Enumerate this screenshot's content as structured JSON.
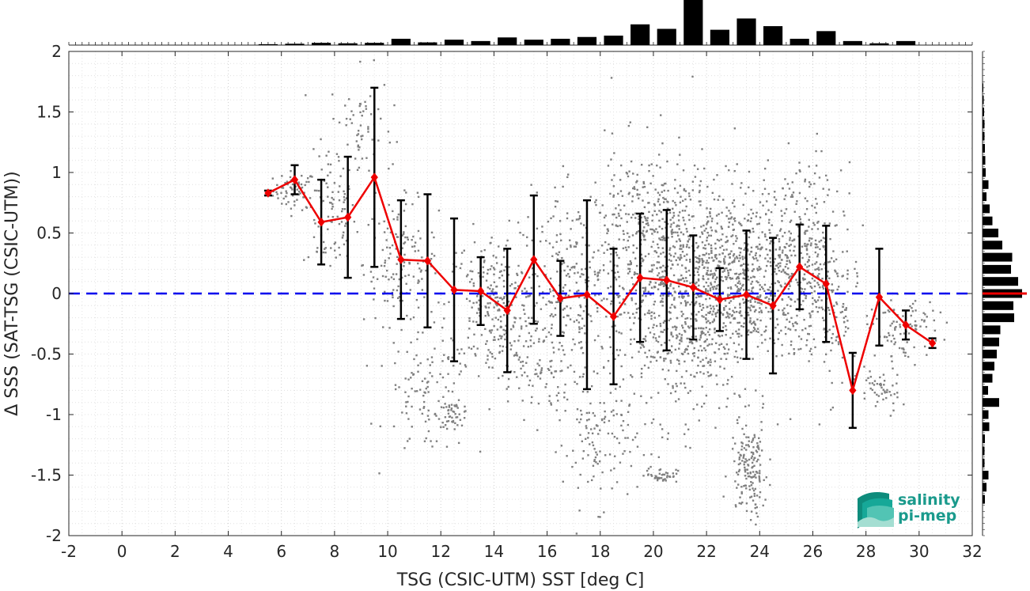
{
  "chart_data": {
    "type": "scatter",
    "xlabel": "TSG (CSIC-UTM) SST [deg C]",
    "ylabel": "Δ SSS (SAT-TSG (CSIC-UTM))",
    "xlim": [
      -2,
      32
    ],
    "ylim": [
      -2,
      2
    ],
    "x_ticks": [
      -2,
      0,
      2,
      4,
      6,
      8,
      10,
      12,
      14,
      16,
      18,
      20,
      22,
      24,
      26,
      28,
      30,
      32
    ],
    "y_ticks": [
      -2,
      -1.5,
      -1,
      -0.5,
      0,
      0.5,
      1,
      1.5,
      2
    ],
    "grid": true,
    "reference_line": {
      "y": 0,
      "color": "#0000ee",
      "style": "dashed"
    },
    "series": [
      {
        "style": "line-with-errorbars",
        "color": "#ee0000",
        "x": [
          5.5,
          6.5,
          7.5,
          8.5,
          9.5,
          10.5,
          11.5,
          12.5,
          13.5,
          14.5,
          15.5,
          16.5,
          17.5,
          18.5,
          19.5,
          20.5,
          21.5,
          22.5,
          23.5,
          24.5,
          25.5,
          26.5,
          27.5,
          28.5,
          29.5,
          30.5
        ],
        "y": [
          0.83,
          0.94,
          0.59,
          0.63,
          0.96,
          0.28,
          0.27,
          0.03,
          0.02,
          -0.14,
          0.28,
          -0.04,
          -0.01,
          -0.19,
          0.13,
          0.11,
          0.05,
          -0.05,
          -0.01,
          -0.1,
          0.22,
          0.08,
          -0.8,
          -0.03,
          -0.26,
          -0.41
        ],
        "err": [
          0.02,
          0.12,
          0.35,
          0.5,
          0.74,
          0.49,
          0.55,
          0.59,
          0.28,
          0.51,
          0.53,
          0.31,
          0.78,
          0.56,
          0.53,
          0.58,
          0.43,
          0.26,
          0.53,
          0.56,
          0.35,
          0.48,
          0.31,
          0.4,
          0.12,
          0.04
        ]
      },
      {
        "style": "scatter",
        "color": "#808080",
        "clusters": [
          {
            "cx": 6.5,
            "cy": 0.85,
            "sx": 0.4,
            "sy": 0.08,
            "n": 60
          },
          {
            "cx": 7.8,
            "cy": 0.65,
            "sx": 0.5,
            "sy": 0.25,
            "n": 90
          },
          {
            "cx": 9.0,
            "cy": 1.35,
            "sx": 0.6,
            "sy": 0.25,
            "n": 70
          },
          {
            "cx": 10.5,
            "cy": 0.25,
            "sx": 0.7,
            "sy": 0.25,
            "n": 150
          },
          {
            "cx": 11.5,
            "cy": -0.85,
            "sx": 0.8,
            "sy": 0.25,
            "n": 110
          },
          {
            "cx": 12.5,
            "cy": -1.0,
            "sx": 0.3,
            "sy": 0.05,
            "n": 40
          },
          {
            "cx": 14.0,
            "cy": -0.1,
            "sx": 0.9,
            "sy": 0.3,
            "n": 260
          },
          {
            "cx": 15.5,
            "cy": -0.6,
            "sx": 0.8,
            "sy": 0.2,
            "n": 90
          },
          {
            "cx": 17.0,
            "cy": 0.0,
            "sx": 1.0,
            "sy": 0.4,
            "n": 260
          },
          {
            "cx": 18.0,
            "cy": -1.25,
            "sx": 0.7,
            "sy": 0.25,
            "n": 110
          },
          {
            "cx": 19.5,
            "cy": 0.6,
            "sx": 0.9,
            "sy": 0.3,
            "n": 180
          },
          {
            "cx": 20.3,
            "cy": -1.5,
            "sx": 0.3,
            "sy": 0.03,
            "n": 40
          },
          {
            "cx": 21.0,
            "cy": 0.0,
            "sx": 1.3,
            "sy": 0.5,
            "n": 900
          },
          {
            "cx": 23.5,
            "cy": 0.15,
            "sx": 1.0,
            "sy": 0.35,
            "n": 500
          },
          {
            "cx": 23.6,
            "cy": -1.45,
            "sx": 0.35,
            "sy": 0.2,
            "n": 160
          },
          {
            "cx": 25.5,
            "cy": 0.35,
            "sx": 0.8,
            "sy": 0.35,
            "n": 260
          },
          {
            "cx": 26.5,
            "cy": -0.1,
            "sx": 0.6,
            "sy": 0.35,
            "n": 160
          },
          {
            "cx": 28.5,
            "cy": -0.8,
            "sx": 0.4,
            "sy": 0.1,
            "n": 50
          },
          {
            "cx": 29.5,
            "cy": -0.3,
            "sx": 0.6,
            "sy": 0.12,
            "n": 90
          }
        ]
      }
    ],
    "x_histogram": {
      "bin_centers": [
        5.5,
        6.5,
        7.5,
        8.5,
        9.5,
        10.5,
        11.5,
        12.5,
        13.5,
        14.5,
        15.5,
        16.5,
        17.5,
        18.5,
        19.5,
        20.5,
        21.5,
        22.5,
        23.5,
        24.5,
        25.5,
        26.5,
        27.5,
        28.5,
        29.5,
        30.5
      ],
      "relative_counts": [
        0.02,
        0.03,
        0.05,
        0.04,
        0.05,
        0.14,
        0.06,
        0.12,
        0.09,
        0.17,
        0.12,
        0.14,
        0.18,
        0.21,
        0.46,
        0.36,
        1.0,
        0.34,
        0.59,
        0.42,
        0.14,
        0.31,
        0.09,
        0.04,
        0.09,
        0.0
      ]
    },
    "y_histogram": {
      "bin_centers": [
        1.7,
        1.6,
        1.5,
        1.4,
        1.3,
        1.2,
        1.1,
        1.0,
        0.9,
        0.8,
        0.7,
        0.6,
        0.5,
        0.4,
        0.3,
        0.2,
        0.1,
        0.0,
        -0.1,
        -0.2,
        -0.3,
        -0.4,
        -0.5,
        -0.6,
        -0.7,
        -0.8,
        -0.9,
        -1.0,
        -1.1,
        -1.2,
        -1.3,
        -1.4,
        -1.5,
        -1.6,
        -1.7
      ],
      "relative_counts": [
        0.02,
        0.03,
        0.04,
        0.05,
        0.05,
        0.06,
        0.07,
        0.08,
        0.15,
        0.1,
        0.18,
        0.25,
        0.4,
        0.5,
        0.75,
        0.72,
        0.9,
        1.0,
        0.78,
        0.8,
        0.45,
        0.42,
        0.36,
        0.3,
        0.25,
        0.14,
        0.42,
        0.15,
        0.17,
        0.06,
        0.05,
        0.05,
        0.15,
        0.1,
        0.06
      ]
    }
  },
  "logo": {
    "line1": "salinity",
    "line2": "pi-mep"
  }
}
